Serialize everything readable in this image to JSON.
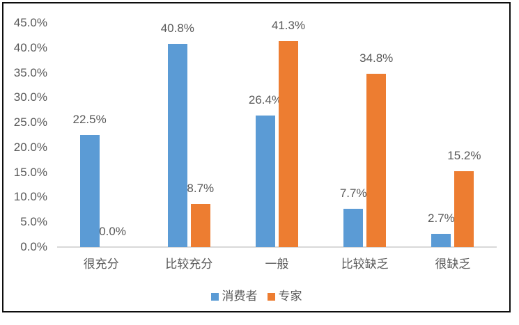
{
  "chart_data": {
    "type": "bar",
    "title": "",
    "xlabel": "",
    "ylabel": "",
    "categories": [
      "很充分",
      "比较充分",
      "一般",
      "比较缺乏",
      "很缺乏"
    ],
    "series": [
      {
        "name": "消费者",
        "color": "#5B9BD5",
        "values": [
          22.5,
          40.8,
          26.4,
          7.7,
          2.7
        ]
      },
      {
        "name": "专家",
        "color": "#ED7D31",
        "values": [
          0.0,
          8.7,
          41.3,
          34.8,
          15.2
        ]
      }
    ],
    "data_labels": [
      [
        "22.5%",
        "40.8%",
        "26.4%",
        "7.7%",
        "2.7%"
      ],
      [
        "0.0%",
        "8.7%",
        "41.3%",
        "34.8%",
        "15.2%"
      ]
    ],
    "y_axis": {
      "min": 0,
      "max": 45,
      "step": 5,
      "ticks": [
        "0.0%",
        "5.0%",
        "10.0%",
        "15.0%",
        "20.0%",
        "25.0%",
        "30.0%",
        "35.0%",
        "40.0%",
        "45.0%"
      ]
    },
    "ylim": [
      0,
      45
    ],
    "grid": false,
    "legend_position": "bottom",
    "legend": [
      {
        "label": "消费者",
        "color": "#5B9BD5"
      },
      {
        "label": "专家",
        "color": "#ED7D31"
      }
    ]
  },
  "colors": {
    "bar_blue": "#5B9BD5",
    "bar_orange": "#ED7D31",
    "axis_line": "#D9D9D9",
    "text": "#595959",
    "frame_border": "#0D0D0D",
    "background": "#FFFFFF"
  }
}
